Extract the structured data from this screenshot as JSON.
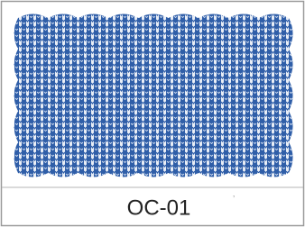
{
  "label": "OC-01"
}
